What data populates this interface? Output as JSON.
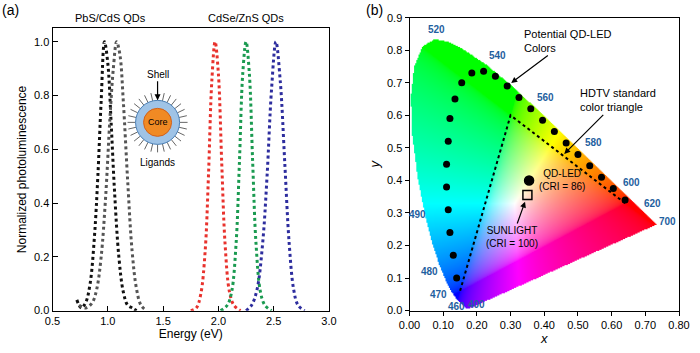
{
  "chart_data": [
    {
      "type": "line",
      "title": "(a)",
      "xlabel": "Energy (eV)",
      "ylabel": "Normalized photoluminescence",
      "xlim": [
        0.5,
        3.0
      ],
      "xticks": [
        0.5,
        {
          "value": 1,
          "label": "1.0"
        },
        1.5,
        {
          "value": 2,
          "label": "2.0"
        },
        2.5,
        {
          "value": 3,
          "label": "3.0"
        }
      ],
      "ylim": [
        0,
        1.05
      ],
      "yticks": [
        {
          "value": 0,
          "label": "0.0"
        },
        0.2,
        0.4,
        0.6,
        0.8,
        {
          "value": 1,
          "label": "1.0"
        }
      ],
      "grid": false,
      "annotations": [
        {
          "text": "PbS/CdS QDs",
          "x": 1.02
        },
        {
          "text": "CdSe/ZnS QDs",
          "x": 2.25
        }
      ],
      "inset": {
        "shell": "Shell",
        "core": "Core",
        "ligands": "Ligands"
      },
      "series": [
        {
          "color": "#111111",
          "line_style": "dotted",
          "x": [
            0.72,
            0.76,
            0.8,
            0.84,
            0.88,
            0.91,
            0.94,
            0.97,
            1.0,
            1.03,
            1.06,
            1.1,
            1.14,
            1.18,
            1.22,
            1.26
          ],
          "values": [
            0.04,
            0.01,
            0.03,
            0.1,
            0.28,
            0.5,
            0.78,
            1.0,
            0.92,
            0.7,
            0.45,
            0.2,
            0.07,
            0.02,
            0.01,
            0.0
          ]
        },
        {
          "color": "#555555",
          "line_style": "dotted",
          "x": [
            0.74,
            0.8,
            0.86,
            0.9,
            0.94,
            0.98,
            1.02,
            1.05,
            1.08,
            1.11,
            1.14,
            1.18,
            1.22,
            1.26,
            1.3,
            1.35
          ],
          "values": [
            0.02,
            0.01,
            0.03,
            0.08,
            0.2,
            0.42,
            0.72,
            0.9,
            1.0,
            0.95,
            0.78,
            0.48,
            0.22,
            0.08,
            0.02,
            0.0
          ]
        },
        {
          "color": "#e8322d",
          "line_style": "dotted",
          "x": [
            1.75,
            1.8,
            1.84,
            1.88,
            1.91,
            1.94,
            1.97,
            2.0,
            2.03,
            2.06,
            2.1,
            2.14,
            2.2
          ],
          "values": [
            0.0,
            0.01,
            0.06,
            0.22,
            0.5,
            0.85,
            1.0,
            0.88,
            0.55,
            0.25,
            0.07,
            0.02,
            0.0
          ]
        },
        {
          "color": "#1a9a50",
          "line_style": "dotted",
          "x": [
            2.02,
            2.08,
            2.12,
            2.16,
            2.19,
            2.22,
            2.25,
            2.28,
            2.31,
            2.34,
            2.38,
            2.42,
            2.48
          ],
          "values": [
            0.0,
            0.02,
            0.07,
            0.25,
            0.55,
            0.88,
            1.0,
            0.88,
            0.55,
            0.25,
            0.07,
            0.02,
            0.0
          ]
        },
        {
          "color": "#2d2d9e",
          "line_style": "dotted",
          "x": [
            2.25,
            2.3,
            2.35,
            2.4,
            2.44,
            2.48,
            2.52,
            2.56,
            2.6,
            2.64,
            2.68,
            2.72,
            2.78
          ],
          "values": [
            0.0,
            0.02,
            0.08,
            0.25,
            0.5,
            0.82,
            1.0,
            0.85,
            0.55,
            0.25,
            0.08,
            0.02,
            0.0
          ]
        }
      ]
    },
    {
      "type": "scatter",
      "title": "(b)",
      "xlabel": "x",
      "ylabel": "y",
      "xlim": [
        0,
        0.8
      ],
      "xticks": [
        {
          "value": 0,
          "label": "0.00"
        },
        {
          "value": 0.1,
          "label": "0.10"
        },
        {
          "value": 0.2,
          "label": "0.20"
        },
        {
          "value": 0.3,
          "label": "0.30"
        },
        {
          "value": 0.4,
          "label": "0.40"
        },
        {
          "value": 0.5,
          "label": "0.50"
        },
        {
          "value": 0.6,
          "label": "0.60"
        },
        {
          "value": 0.7,
          "label": "0.70"
        },
        {
          "value": 0.8,
          "label": "0.80"
        }
      ],
      "ylim": [
        0,
        0.9
      ],
      "yticks": [
        {
          "value": 0,
          "label": "0.0"
        },
        0.1,
        0.2,
        0.3,
        0.4,
        0.5,
        0.6,
        0.7,
        0.8,
        0.9
      ],
      "grid": false,
      "spectral_locus": {
        "x": [
          0.1741,
          0.1714,
          0.1644,
          0.1566,
          0.144,
          0.1241,
          0.1096,
          0.0913,
          0.0687,
          0.0454,
          0.0235,
          0.0082,
          0.0039,
          0.0139,
          0.0389,
          0.0743,
          0.1142,
          0.1547,
          0.2296,
          0.3016,
          0.3731,
          0.4441,
          0.5125,
          0.5752,
          0.627,
          0.6658,
          0.6915,
          0.719,
          0.7347
        ],
        "y": [
          0.005,
          0.0051,
          0.0109,
          0.0177,
          0.0297,
          0.0578,
          0.0868,
          0.1327,
          0.2007,
          0.295,
          0.4127,
          0.5384,
          0.6548,
          0.7502,
          0.812,
          0.8338,
          0.8262,
          0.8059,
          0.7543,
          0.6923,
          0.6245,
          0.5547,
          0.4866,
          0.4242,
          0.3725,
          0.334,
          0.3083,
          0.2809,
          0.2653
        ]
      },
      "wavelength_labels": [
        {
          "text": "400",
          "x": 0.2,
          "y": 0.02
        },
        {
          "text": "460",
          "x": 0.14,
          "y": 0.012
        },
        {
          "text": "470",
          "x": 0.085,
          "y": 0.05
        },
        {
          "text": "480",
          "x": 0.06,
          "y": 0.12
        },
        {
          "text": "490",
          "x": 0.025,
          "y": 0.295
        },
        {
          "text": "520",
          "x": 0.08,
          "y": 0.865
        },
        {
          "text": "540",
          "x": 0.26,
          "y": 0.785
        },
        {
          "text": "560",
          "x": 0.405,
          "y": 0.655
        },
        {
          "text": "580",
          "x": 0.545,
          "y": 0.515
        },
        {
          "text": "600",
          "x": 0.66,
          "y": 0.395
        },
        {
          "text": "620",
          "x": 0.72,
          "y": 0.33
        },
        {
          "text": "700",
          "x": 0.765,
          "y": 0.275
        }
      ],
      "dots": {
        "label": [
          "Potential QD-LED",
          "Colors"
        ],
        "marker": "circle",
        "color": "#000000",
        "x": [
          0.14,
          0.13,
          0.12,
          0.115,
          0.11,
          0.11,
          0.115,
          0.12,
          0.135,
          0.155,
          0.185,
          0.22,
          0.255,
          0.29,
          0.325,
          0.36,
          0.395,
          0.43,
          0.465,
          0.5,
          0.535,
          0.57,
          0.605,
          0.64
        ],
        "y": [
          0.1,
          0.17,
          0.24,
          0.31,
          0.38,
          0.45,
          0.52,
          0.59,
          0.65,
          0.7,
          0.73,
          0.735,
          0.72,
          0.69,
          0.655,
          0.62,
          0.585,
          0.55,
          0.515,
          0.48,
          0.445,
          0.41,
          0.375,
          0.34
        ],
        "arrow_to": {
          "x": 0.29,
          "y": 0.69
        }
      },
      "triangle": {
        "label": [
          "HDTV standard",
          "color triangle"
        ],
        "line_style": "dotted",
        "color": "#000000",
        "x": [
          0.64,
          0.3,
          0.15
        ],
        "y": [
          0.33,
          0.6,
          0.06
        ],
        "arrow_to": {
          "x": 0.455,
          "y": 0.477
        }
      },
      "points": [
        {
          "label": [
            "QD-LED",
            "(CRI = 86)"
          ],
          "x": 0.355,
          "y": 0.4,
          "marker": "circle",
          "color": "#000000"
        },
        {
          "label": [
            "SUNLIGHT",
            "(CRI = 100)"
          ],
          "x": 0.35,
          "y": 0.355,
          "marker": "square-open",
          "color": "#000000"
        }
      ]
    }
  ]
}
